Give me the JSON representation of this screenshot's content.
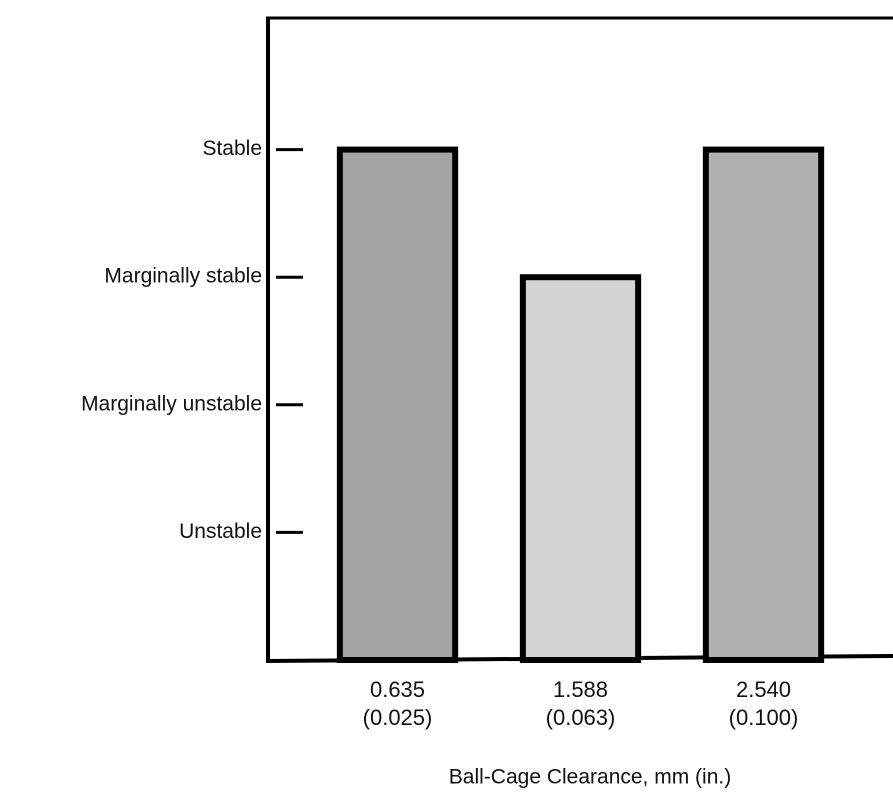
{
  "chart_data": {
    "type": "bar",
    "x_label": "Ball-Cage Clearance, mm (in.)",
    "categories": [
      "0.635\n(0.025)",
      "1.588\n(0.063)",
      "2.540\n(0.100)"
    ],
    "values": [
      4,
      3,
      4
    ],
    "colors": [
      "#a4a4a4",
      "#d2d2d2",
      "#b0b0b0"
    ],
    "ylim": [
      0,
      5
    ],
    "yticks": [
      {
        "value": 1,
        "label": "Unstable"
      },
      {
        "value": 2,
        "label": "Marginally unstable"
      },
      {
        "value": 3,
        "label": "Marginally stable"
      },
      {
        "value": 4,
        "label": "Stable"
      }
    ]
  }
}
